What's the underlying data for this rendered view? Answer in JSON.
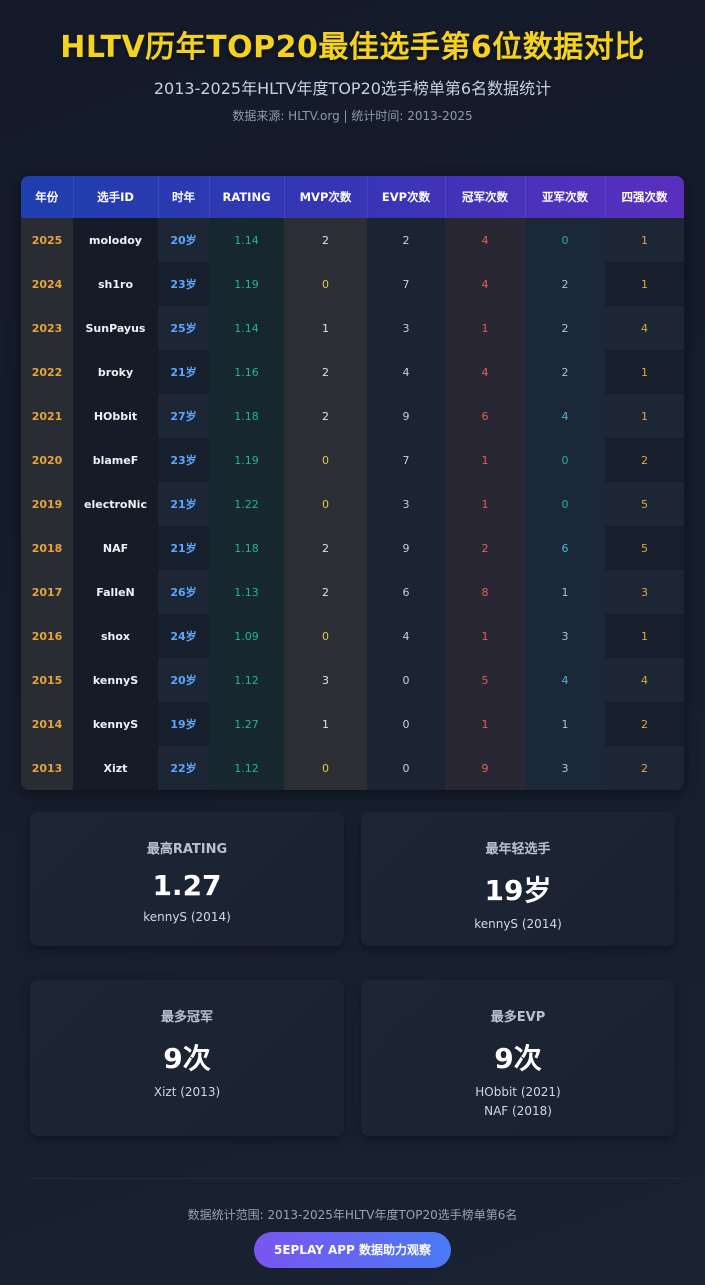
{
  "header": {
    "title": "HLTV历年TOP20最佳选手第6位数据对比",
    "subtitle": "2013-2025年HLTV年度TOP20选手榜单第6名数据统计",
    "source": "数据来源: HLTV.org | 统计时间: 2013-2025"
  },
  "table": {
    "headers": [
      "年份",
      "选手ID",
      "时年",
      "RATING",
      "MVP次数",
      "EVP次数",
      "冠军次数",
      "亚军次数",
      "四强次数"
    ],
    "rows": [
      [
        "2025",
        "molodoy",
        "20岁",
        "1.14",
        "2",
        "2",
        "4",
        "0",
        "1"
      ],
      [
        "2024",
        "sh1ro",
        "23岁",
        "1.19",
        "0",
        "7",
        "4",
        "2",
        "1"
      ],
      [
        "2023",
        "SunPayus",
        "25岁",
        "1.14",
        "1",
        "3",
        "1",
        "2",
        "4"
      ],
      [
        "2022",
        "broky",
        "21岁",
        "1.16",
        "2",
        "4",
        "4",
        "2",
        "1"
      ],
      [
        "2021",
        "HObbit",
        "27岁",
        "1.18",
        "2",
        "9",
        "6",
        "4",
        "1"
      ],
      [
        "2020",
        "blameF",
        "23岁",
        "1.19",
        "0",
        "7",
        "1",
        "0",
        "2"
      ],
      [
        "2019",
        "electroNic",
        "21岁",
        "1.22",
        "0",
        "3",
        "1",
        "0",
        "5"
      ],
      [
        "2018",
        "NAF",
        "21岁",
        "1.18",
        "2",
        "9",
        "2",
        "6",
        "5"
      ],
      [
        "2017",
        "FalleN",
        "26岁",
        "1.13",
        "2",
        "6",
        "8",
        "1",
        "3"
      ],
      [
        "2016",
        "shox",
        "24岁",
        "1.09",
        "0",
        "4",
        "1",
        "3",
        "1"
      ],
      [
        "2015",
        "kennyS",
        "20岁",
        "1.12",
        "3",
        "0",
        "5",
        "4",
        "4"
      ],
      [
        "2014",
        "kennyS",
        "19岁",
        "1.27",
        "1",
        "0",
        "1",
        "1",
        "2"
      ],
      [
        "2013",
        "Xizt",
        "22岁",
        "1.12",
        "0",
        "0",
        "9",
        "3",
        "2"
      ]
    ]
  },
  "cards": [
    {
      "label": "最高RATING",
      "value": "1.27",
      "detail": [
        "kennyS (2014)"
      ]
    },
    {
      "label": "最年轻选手",
      "value": "19岁",
      "detail": [
        "kennyS (2014)"
      ]
    },
    {
      "label": "最多冠军",
      "value": "9次",
      "detail": [
        "Xizt (2013)"
      ]
    },
    {
      "label": "最多EVP",
      "value": "9次",
      "detail": [
        "HObbit (2021)",
        "NAF (2018)"
      ]
    }
  ],
  "footer": {
    "range": "数据统计范围: 2013-2025年HLTV年度TOP20选手榜单第6名",
    "badge": "5EPLAY APP 数据助力观察"
  },
  "colors": {
    "title": "#f5d21e",
    "year": "#e8a33a",
    "age": "#5aa7ff",
    "rating": "#1fb59a",
    "zero": "#1fb59a",
    "mvp_positive": "#e3c94a",
    "champ_text": "#e0624f",
    "runner_text": "#4fb6d6",
    "semi_text": "#e6a33a"
  }
}
